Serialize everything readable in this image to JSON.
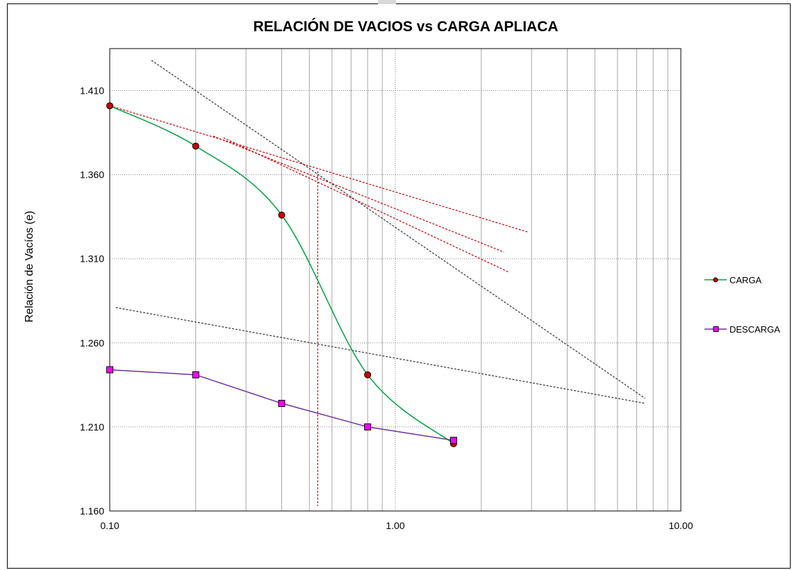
{
  "chart_data": {
    "type": "line",
    "title": "RELACIÓN DE VACIOS vs CARGA  APLIACA",
    "xlabel": "",
    "ylabel": "Relación de Vacíos (e)",
    "x_scale": "log",
    "xlim": [
      0.1,
      10
    ],
    "ylim": [
      1.16,
      1.435
    ],
    "x_ticks": [
      "0.10",
      "1.00",
      "10.00"
    ],
    "y_ticks": [
      "1.160",
      "1.210",
      "1.260",
      "1.310",
      "1.360",
      "1.410"
    ],
    "grid": true,
    "legend_position": "right",
    "series": [
      {
        "name": "CARGA",
        "color": "#00a040",
        "marker_color": "#cc0000",
        "marker": "circle",
        "x": [
          0.1,
          0.2,
          0.4,
          0.8,
          1.6
        ],
        "y": [
          1.401,
          1.377,
          1.336,
          1.241,
          1.2
        ]
      },
      {
        "name": "DESCARGA",
        "color": "#7030a0",
        "marker_color": "#ff00ff",
        "marker": "square",
        "x": [
          0.1,
          0.2,
          0.4,
          0.8,
          1.6
        ],
        "y": [
          1.244,
          1.241,
          1.224,
          1.21,
          1.202
        ]
      }
    ],
    "construction_lines": [
      {
        "color": "#333333",
        "x": [
          0.14,
          7.5
        ],
        "y": [
          1.428,
          1.227
        ]
      },
      {
        "color": "#333333",
        "x": [
          0.105,
          7.5
        ],
        "y": [
          1.281,
          1.224
        ]
      },
      {
        "color": "#cc0000",
        "x": [
          0.1,
          2.9
        ],
        "y": [
          1.401,
          1.326
        ]
      },
      {
        "color": "#cc0000",
        "x": [
          0.23,
          2.4
        ],
        "y": [
          1.383,
          1.314
        ]
      },
      {
        "color": "#cc0000",
        "x": [
          0.25,
          2.5
        ],
        "y": [
          1.382,
          1.302
        ]
      },
      {
        "color": "#cc0000",
        "x": [
          0.535,
          0.535
        ],
        "y": [
          1.362,
          1.163
        ]
      }
    ]
  }
}
